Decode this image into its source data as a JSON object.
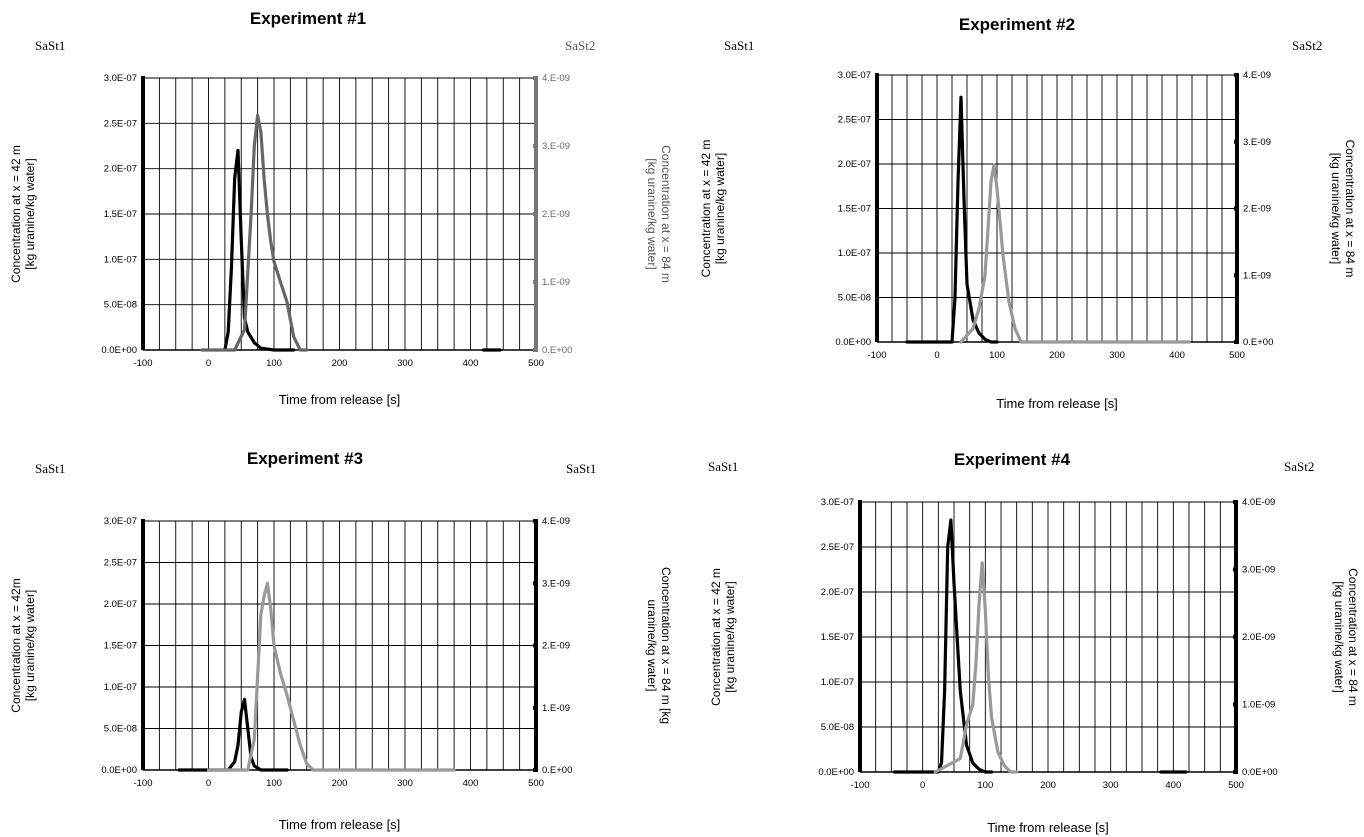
{
  "chart_data": [
    {
      "type": "line",
      "title": "Experiment #1",
      "left_station": "SaSt1",
      "right_station": "SaSt2",
      "xlabel": "Time from release [s]",
      "ylabel_left": [
        "Concentration at x = 42 m",
        "[kg uranine/kg water]"
      ],
      "ylabel_right": [
        "[kg uranine/kg water]",
        "Concentration at x = 84 m"
      ],
      "xlim": [
        -100,
        500
      ],
      "ylim_left": [
        0,
        3e-07
      ],
      "ylim_right": [
        0,
        4e-09
      ],
      "x_ticks": [
        "-100",
        "0",
        "100",
        "200",
        "300",
        "400",
        "500"
      ],
      "y_left_ticks": [
        "0.0E+00",
        "5.0E-08",
        "1.0E-07",
        "1.5E-07",
        "2.0E-07",
        "2.5E-07",
        "3.0E-07"
      ],
      "y_right_ticks": [
        "0.E+00",
        "1.E-09",
        "2.E-09",
        "3.E-09",
        "4.E-09"
      ],
      "grid": true,
      "series": [
        {
          "axis": "left",
          "color": "#000000",
          "x": [
            25,
            30,
            35,
            40,
            45,
            50,
            55,
            60,
            70,
            80,
            90,
            100,
            130
          ],
          "y": [
            0,
            2e-08,
            9e-08,
            1.9e-07,
            2.2e-07,
            1.2e-07,
            3.5e-08,
            2e-08,
            8e-09,
            2e-09,
            1e-09,
            0,
            0
          ]
        },
        {
          "axis": "right",
          "color": "#666666",
          "x": [
            -10,
            40,
            55,
            65,
            70,
            75,
            80,
            85,
            90,
            95,
            100,
            110,
            120,
            130,
            140,
            150
          ],
          "y": [
            0,
            0,
            3e-10,
            2e-09,
            3e-09,
            3.45e-09,
            3.2e-09,
            2.5e-09,
            2e-09,
            1.6e-09,
            1.3e-09,
            1e-09,
            7e-10,
            2e-10,
            0,
            0
          ]
        },
        {
          "axis": "left",
          "color": "#000000",
          "x": [
            420,
            445
          ],
          "y": [
            0,
            0
          ]
        }
      ]
    },
    {
      "type": "line",
      "title": "Experiment #2",
      "left_station": "SaSt1",
      "right_station": "SaSt2",
      "xlabel": "Time from release [s]",
      "ylabel_left": [
        "Concentration at x = 42 m",
        "[kg uranine/kg water]"
      ],
      "ylabel_right": [
        "[kg uranine/kg water]",
        "Concentration at x = 84 m"
      ],
      "xlim": [
        -100,
        500
      ],
      "ylim_left": [
        0,
        3e-07
      ],
      "ylim_right": [
        0,
        4e-09
      ],
      "x_ticks": [
        "-100",
        "0",
        "100",
        "200",
        "300",
        "400",
        "500"
      ],
      "y_left_ticks": [
        "0.0E+00",
        "5.0E-08",
        "1.0E-07",
        "1.5E-07",
        "2.0E-07",
        "2.5E-07",
        "3.0E-07"
      ],
      "y_right_ticks": [
        "0.E+00",
        "1.E-09",
        "2.E-09",
        "3.E-09",
        "4.E-09"
      ],
      "grid": true,
      "series": [
        {
          "axis": "left",
          "color": "#000000",
          "x": [
            -50,
            25,
            30,
            35,
            40,
            45,
            50,
            55,
            60,
            70,
            80,
            90,
            100
          ],
          "y": [
            0,
            0,
            5e-08,
            1.8e-07,
            2.75e-07,
            1.6e-07,
            6.5e-08,
            4.5e-08,
            2.5e-08,
            1e-08,
            3e-09,
            0,
            0
          ]
        },
        {
          "axis": "right",
          "color": "#999999",
          "x": [
            40,
            60,
            70,
            80,
            90,
            95,
            100,
            110,
            120,
            130,
            140,
            420
          ],
          "y": [
            0,
            2e-10,
            5e-10,
            1e-09,
            2.4e-09,
            2.65e-09,
            2.3e-09,
            1.3e-09,
            6e-10,
            2e-10,
            0,
            0
          ]
        }
      ]
    },
    {
      "type": "line",
      "title": "Experiment #3",
      "left_station": "SaSt1",
      "right_station": "SaSt1",
      "xlabel": "Time from release [s]",
      "ylabel_left": [
        "Concentration at x = 42m",
        "[kg uranine/kg water]"
      ],
      "ylabel_right": [
        "uranine/kg water]",
        "Concentration at x = 84 m [kg"
      ],
      "xlim": [
        -100,
        500
      ],
      "ylim_left": [
        0,
        3e-07
      ],
      "ylim_right": [
        0,
        4e-09
      ],
      "x_ticks": [
        "-100",
        "0",
        "100",
        "200",
        "300",
        "400",
        "500"
      ],
      "y_left_ticks": [
        "0.0E+00",
        "5.0E-08",
        "1.0E-07",
        "1.5E-07",
        "2.0E-07",
        "2.5E-07",
        "3.0E-07"
      ],
      "y_right_ticks": [
        "0.E+00",
        "1.E-09",
        "2.E-09",
        "3.E-09",
        "4.E-09"
      ],
      "grid": true,
      "series": [
        {
          "axis": "left",
          "color": "#000000",
          "x": [
            -45,
            -15,
            30,
            40,
            45,
            50,
            55,
            60,
            65,
            70,
            80,
            120
          ],
          "y": [
            0,
            0,
            0,
            1e-08,
            3e-08,
            7e-08,
            8.5e-08,
            5e-08,
            1.5e-08,
            5e-09,
            0,
            0
          ]
        },
        {
          "axis": "right",
          "color": "#999999",
          "x": [
            0,
            60,
            70,
            75,
            80,
            85,
            90,
            95,
            100,
            110,
            120,
            130,
            140,
            150,
            160,
            375
          ],
          "y": [
            0,
            0,
            5e-10,
            1.5e-09,
            2.5e-09,
            2.8e-09,
            3e-09,
            2.6e-09,
            2e-09,
            1.55e-09,
            1.2e-09,
            8e-10,
            4e-10,
            1e-10,
            0,
            0
          ]
        }
      ]
    },
    {
      "type": "line",
      "title": "Experiment #4",
      "left_station": "SaSt1",
      "right_station": "SaSt2",
      "xlabel": "Time from release [s]",
      "ylabel_left": [
        "Concentration at x = 42 m",
        "[kg uranine/kg water]"
      ],
      "ylabel_right": [
        "[kg uranine/kg water]",
        "Concentration at x = 84 m"
      ],
      "xlim": [
        -100,
        500
      ],
      "ylim_left": [
        0,
        3e-07
      ],
      "ylim_right": [
        0,
        4e-09
      ],
      "x_ticks": [
        "-100",
        "0",
        "100",
        "200",
        "300",
        "400",
        "500"
      ],
      "y_left_ticks": [
        "0.0E+00",
        "5.0E-08",
        "1.0E-07",
        "1.5E-07",
        "2.0E-07",
        "2.5E-07",
        "3.0E-07"
      ],
      "y_right_ticks": [
        "0.0E+00",
        "1.0E-09",
        "2.0E-09",
        "3.0E-09",
        "4.0E-09"
      ],
      "grid": true,
      "series": [
        {
          "axis": "left",
          "color": "#000000",
          "x": [
            -45,
            -15,
            25,
            30,
            35,
            40,
            45,
            50,
            55,
            60,
            70,
            80,
            90,
            100,
            110
          ],
          "y": [
            0,
            0,
            0,
            1e-08,
            9e-08,
            2.5e-07,
            2.8e-07,
            2.1e-07,
            1.5e-07,
            9e-08,
            3e-08,
            1e-08,
            3e-09,
            0,
            0
          ]
        },
        {
          "axis": "right",
          "color": "#999999",
          "x": [
            20,
            60,
            70,
            80,
            85,
            90,
            95,
            100,
            105,
            110,
            120,
            130,
            140,
            150
          ],
          "y": [
            0,
            2e-10,
            7e-10,
            1e-09,
            1.6e-09,
            2.5e-09,
            3.1e-09,
            2.4e-09,
            1.4e-09,
            8e-10,
            3e-10,
            1e-10,
            0,
            0
          ]
        },
        {
          "axis": "left",
          "color": "#000000",
          "x": [
            380,
            420
          ],
          "y": [
            0,
            0
          ]
        }
      ]
    }
  ]
}
